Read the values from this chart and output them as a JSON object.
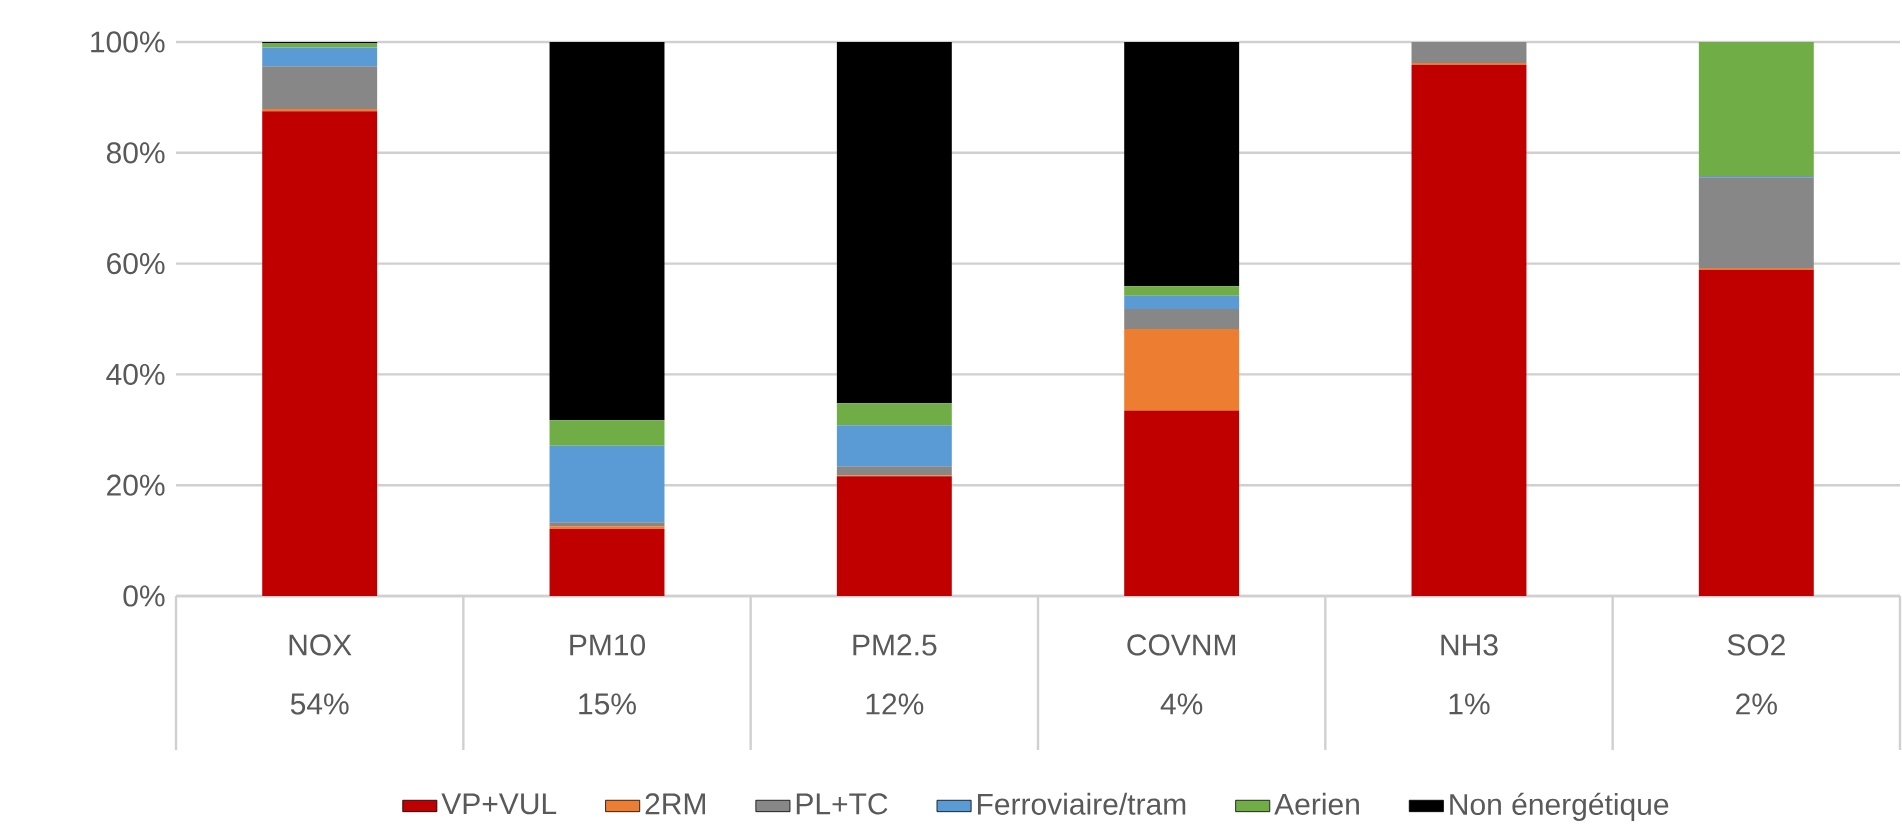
{
  "chart_data": {
    "type": "bar",
    "stacked": true,
    "categories": [
      "NOX",
      "PM10",
      "PM2.5",
      "COVNM",
      "NH3",
      "SO2"
    ],
    "annotations": [
      "54%",
      "15%",
      "12%",
      "4%",
      "1%",
      "2%"
    ],
    "series": [
      {
        "name": "VP+VUL",
        "color": "#c00000",
        "values": [
          87.5,
          12.1,
          21.6,
          33.5,
          95.9,
          58.9
        ]
      },
      {
        "name": "2RM",
        "color": "#ed7d31",
        "values": [
          0.4,
          0.5,
          0.2,
          14.7,
          0.3,
          0.3
        ]
      },
      {
        "name": "PL+TC",
        "color": "#878787",
        "values": [
          7.7,
          0.7,
          1.6,
          3.6,
          3.8,
          16.4
        ]
      },
      {
        "name": "Ferroviaire/tram",
        "color": "#5b9bd5",
        "values": [
          3.4,
          13.8,
          7.4,
          2.4,
          0,
          0.2
        ]
      },
      {
        "name": "Aerien",
        "color": "#70ad47",
        "values": [
          0.8,
          4.6,
          4.0,
          1.7,
          0,
          24.2
        ]
      },
      {
        "name": "Non énergétique",
        "color": "#000000",
        "values": [
          0.2,
          68.3,
          65.2,
          44.1,
          0,
          0
        ]
      }
    ],
    "ylim": [
      0,
      100
    ],
    "yticks": [
      {
        "value": 0,
        "label": "0%"
      },
      {
        "value": 20,
        "label": "20%"
      },
      {
        "value": 40,
        "label": "40%"
      },
      {
        "value": 60,
        "label": "60%"
      },
      {
        "value": 80,
        "label": "80%"
      },
      {
        "value": 100,
        "label": "100%"
      }
    ],
    "grid": "y",
    "legend": "bottom"
  }
}
